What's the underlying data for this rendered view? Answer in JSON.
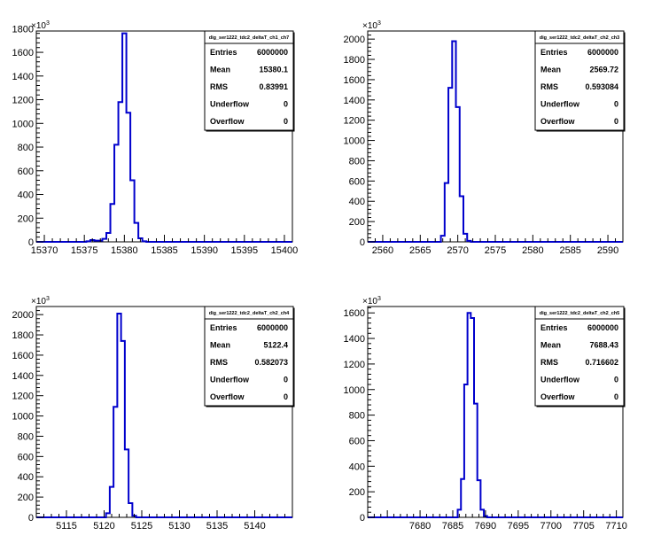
{
  "chart_data": [
    {
      "type": "histogram",
      "title": "dig_ser1222_tdc2_deltaT_ch1_ch7",
      "y_multiplier": "×10",
      "y_multiplier_exp": "3",
      "xlim": [
        15369,
        15401
      ],
      "ylim": [
        0,
        1780
      ],
      "x_ticks": [
        15370,
        15375,
        15380,
        15385,
        15390,
        15395,
        15400
      ],
      "y_ticks": [
        0,
        200,
        400,
        600,
        800,
        1000,
        1200,
        1400,
        1600,
        1800
      ],
      "bin_width": 0.5,
      "bins": [
        {
          "x": 15375.5,
          "y": 5
        },
        {
          "x": 15376.0,
          "y": 15
        },
        {
          "x": 15376.5,
          "y": 10
        },
        {
          "x": 15377.0,
          "y": 10
        },
        {
          "x": 15377.5,
          "y": 25
        },
        {
          "x": 15378.0,
          "y": 75
        },
        {
          "x": 15378.5,
          "y": 320
        },
        {
          "x": 15379.0,
          "y": 820
        },
        {
          "x": 15379.5,
          "y": 1180
        },
        {
          "x": 15380.0,
          "y": 1760
        },
        {
          "x": 15380.5,
          "y": 1090
        },
        {
          "x": 15381.0,
          "y": 520
        },
        {
          "x": 15381.5,
          "y": 160
        },
        {
          "x": 15382.0,
          "y": 30
        },
        {
          "x": 15382.5,
          "y": 5
        }
      ],
      "stats": [
        {
          "label": "Entries",
          "value": "6000000"
        },
        {
          "label": "Mean",
          "value": "15380.1"
        },
        {
          "label": "RMS",
          "value": "0.83991"
        },
        {
          "label": "Underflow",
          "value": "0"
        },
        {
          "label": "Overflow",
          "value": "0"
        }
      ],
      "line_color": "#0000cc"
    },
    {
      "type": "histogram",
      "title": "dig_ser1222_tdc2_deltaT_ch2_ch3",
      "y_multiplier": "×10",
      "y_multiplier_exp": "3",
      "xlim": [
        2558,
        2592
      ],
      "ylim": [
        0,
        2080
      ],
      "x_ticks": [
        2560,
        2565,
        2570,
        2575,
        2580,
        2585,
        2590
      ],
      "y_ticks": [
        0,
        200,
        400,
        600,
        800,
        1000,
        1200,
        1400,
        1600,
        1800,
        2000
      ],
      "bin_width": 0.5,
      "bins": [
        {
          "x": 2568.0,
          "y": 60
        },
        {
          "x": 2568.5,
          "y": 580
        },
        {
          "x": 2569.0,
          "y": 1520
        },
        {
          "x": 2569.5,
          "y": 1980
        },
        {
          "x": 2570.0,
          "y": 1330
        },
        {
          "x": 2570.5,
          "y": 450
        },
        {
          "x": 2571.0,
          "y": 80
        },
        {
          "x": 2571.5,
          "y": 10
        }
      ],
      "stats": [
        {
          "label": "Entries",
          "value": "6000000"
        },
        {
          "label": "Mean",
          "value": "2569.72"
        },
        {
          "label": "RMS",
          "value": "0.593084"
        },
        {
          "label": "Underflow",
          "value": "0"
        },
        {
          "label": "Overflow",
          "value": "0"
        }
      ],
      "line_color": "#0000cc"
    },
    {
      "type": "histogram",
      "title": "dig_ser1222_tdc2_deltaT_ch2_ch4",
      "y_multiplier": "×10",
      "y_multiplier_exp": "3",
      "xlim": [
        5111,
        5145
      ],
      "ylim": [
        0,
        2080
      ],
      "x_ticks": [
        5115,
        5120,
        5125,
        5130,
        5135,
        5140
      ],
      "y_ticks": [
        0,
        200,
        400,
        600,
        800,
        1000,
        1200,
        1400,
        1600,
        1800,
        2000
      ],
      "bin_width": 0.5,
      "bins": [
        {
          "x": 5120.5,
          "y": 40
        },
        {
          "x": 5121.0,
          "y": 300
        },
        {
          "x": 5121.5,
          "y": 1090
        },
        {
          "x": 5122.0,
          "y": 2010
        },
        {
          "x": 5122.5,
          "y": 1740
        },
        {
          "x": 5123.0,
          "y": 670
        },
        {
          "x": 5123.5,
          "y": 140
        },
        {
          "x": 5124.0,
          "y": 15
        }
      ],
      "stats": [
        {
          "label": "Entries",
          "value": "6000000"
        },
        {
          "label": "Mean",
          "value": "5122.4"
        },
        {
          "label": "RMS",
          "value": "0.582073"
        },
        {
          "label": "Underflow",
          "value": "0"
        },
        {
          "label": "Overflow",
          "value": "0"
        }
      ],
      "line_color": "#0000cc"
    },
    {
      "type": "histogram",
      "title": "dig_ser1222_tdc2_deltaT_ch2_ch5",
      "y_multiplier": "×10",
      "y_multiplier_exp": "3",
      "xlim": [
        7672,
        7711
      ],
      "ylim": [
        0,
        1650
      ],
      "x_ticks": [
        7680,
        7685,
        7690,
        7695,
        7700,
        7705,
        7710
      ],
      "y_ticks": [
        0,
        200,
        400,
        600,
        800,
        1000,
        1200,
        1400,
        1600
      ],
      "bin_width": 0.5,
      "bins": [
        {
          "x": 7686.0,
          "y": 60
        },
        {
          "x": 7686.5,
          "y": 300
        },
        {
          "x": 7687.0,
          "y": 1040
        },
        {
          "x": 7687.5,
          "y": 1600
        },
        {
          "x": 7688.0,
          "y": 1560
        },
        {
          "x": 7688.5,
          "y": 890
        },
        {
          "x": 7689.0,
          "y": 290
        },
        {
          "x": 7689.5,
          "y": 60
        },
        {
          "x": 7690.0,
          "y": 10
        }
      ],
      "stats": [
        {
          "label": "Entries",
          "value": "6000000"
        },
        {
          "label": "Mean",
          "value": "7688.43"
        },
        {
          "label": "RMS",
          "value": "0.716602"
        },
        {
          "label": "Underflow",
          "value": "0"
        },
        {
          "label": "Overflow",
          "value": "0"
        }
      ],
      "line_color": "#0000cc"
    }
  ]
}
